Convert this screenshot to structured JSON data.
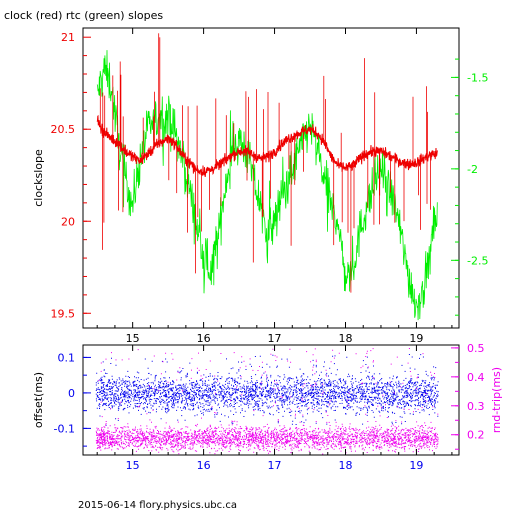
{
  "title": "clock (red) rtc (green) slopes",
  "footer": "2015-06-14 flory.physics.ubc.ca",
  "colors": {
    "red": "#ee0000",
    "green": "#00ee00",
    "blue": "#0000ee",
    "magenta": "#ee00ee",
    "axis": "#000000"
  },
  "chart_data": [
    {
      "type": "line",
      "title": "clock (red) rtc (green) slopes",
      "ylabel": "clockslope",
      "x_ticks": [
        15,
        16,
        17,
        18,
        19
      ],
      "xlim": [
        14.3,
        19.6
      ],
      "ylim_left": [
        19.42,
        21.05
      ],
      "ylim_right": [
        -2.87,
        -1.23
      ],
      "y_ticks_left": [
        "21",
        "20.5",
        "20",
        "19.5"
      ],
      "y_ticks_right": [
        "-1.5",
        "-2",
        "-2.5"
      ],
      "series": [
        {
          "name": "clock",
          "color": "red",
          "axis": "left",
          "x": [
            14.5,
            14.6,
            14.7,
            14.8,
            14.9,
            15.0,
            15.1,
            15.2,
            15.3,
            15.4,
            15.5,
            15.6,
            15.7,
            15.8,
            15.9,
            16.0,
            16.1,
            16.2,
            16.3,
            16.4,
            16.5,
            16.6,
            16.7,
            16.8,
            16.9,
            17.0,
            17.1,
            17.2,
            17.3,
            17.4,
            17.5,
            17.6,
            17.7,
            17.8,
            17.9,
            18.0,
            18.1,
            18.2,
            18.3,
            18.4,
            18.5,
            18.6,
            18.7,
            18.8,
            18.9,
            19.0,
            19.1,
            19.2,
            19.3
          ],
          "values": [
            20.55,
            20.48,
            20.45,
            20.42,
            20.38,
            20.35,
            20.33,
            20.36,
            20.4,
            20.43,
            20.45,
            20.42,
            20.36,
            20.32,
            20.28,
            20.27,
            20.28,
            20.3,
            20.33,
            20.36,
            20.38,
            20.38,
            20.36,
            20.34,
            20.35,
            20.38,
            20.42,
            20.45,
            20.47,
            20.49,
            20.5,
            20.48,
            20.43,
            20.35,
            20.3,
            20.29,
            20.3,
            20.34,
            20.37,
            20.38,
            20.38,
            20.36,
            20.34,
            20.32,
            20.31,
            20.32,
            20.34,
            20.36,
            20.37
          ]
        },
        {
          "name": "rtc",
          "color": "green",
          "axis": "right",
          "x": [
            14.5,
            14.6,
            14.7,
            14.8,
            14.9,
            15.0,
            15.1,
            15.2,
            15.3,
            15.4,
            15.5,
            15.6,
            15.7,
            15.8,
            15.9,
            16.0,
            16.1,
            16.2,
            16.3,
            16.4,
            16.5,
            16.6,
            16.7,
            16.8,
            16.9,
            17.0,
            17.1,
            17.2,
            17.3,
            17.4,
            17.5,
            17.6,
            17.7,
            17.8,
            17.9,
            18.0,
            18.1,
            18.2,
            18.3,
            18.4,
            18.5,
            18.6,
            18.7,
            18.8,
            18.9,
            19.0,
            19.1,
            19.2,
            19.3
          ],
          "values": [
            -1.6,
            -1.45,
            -1.55,
            -1.85,
            -2.05,
            -2.2,
            -1.95,
            -1.8,
            -1.75,
            -1.7,
            -1.72,
            -1.8,
            -1.95,
            -2.1,
            -2.3,
            -2.5,
            -2.55,
            -2.4,
            -2.1,
            -1.9,
            -1.85,
            -1.9,
            -2.05,
            -2.2,
            -2.35,
            -2.3,
            -2.15,
            -2.05,
            -1.95,
            -1.85,
            -1.75,
            -1.9,
            -2.05,
            -2.2,
            -2.3,
            -2.6,
            -2.55,
            -2.35,
            -2.2,
            -2.1,
            -2.0,
            -2.1,
            -2.2,
            -2.4,
            -2.6,
            -2.75,
            -2.65,
            -2.45,
            -2.2
          ]
        }
      ]
    },
    {
      "type": "scatter",
      "ylabel_left": "offset(ms)",
      "ylabel_right": "rnd-trip(ms)",
      "x_ticks": [
        15,
        16,
        17,
        18,
        19
      ],
      "xlim": [
        14.3,
        19.6
      ],
      "ylim_left": [
        -0.175,
        0.135
      ],
      "ylim_right": [
        0.13,
        0.51
      ],
      "y_ticks_left": [
        "0.1",
        "0",
        "-0.1"
      ],
      "y_ticks_right": [
        "0.5",
        "0.4",
        "0.3",
        "0.2"
      ],
      "series": [
        {
          "name": "offset",
          "color": "blue",
          "axis": "left",
          "center": 0.0,
          "spread": 0.025,
          "outlier_range": [
            -0.09,
            0.11
          ]
        },
        {
          "name": "rnd-trip",
          "color": "magenta",
          "axis": "right",
          "center": 0.19,
          "spread": 0.02,
          "outlier_range": [
            0.24,
            0.5
          ]
        }
      ]
    }
  ]
}
